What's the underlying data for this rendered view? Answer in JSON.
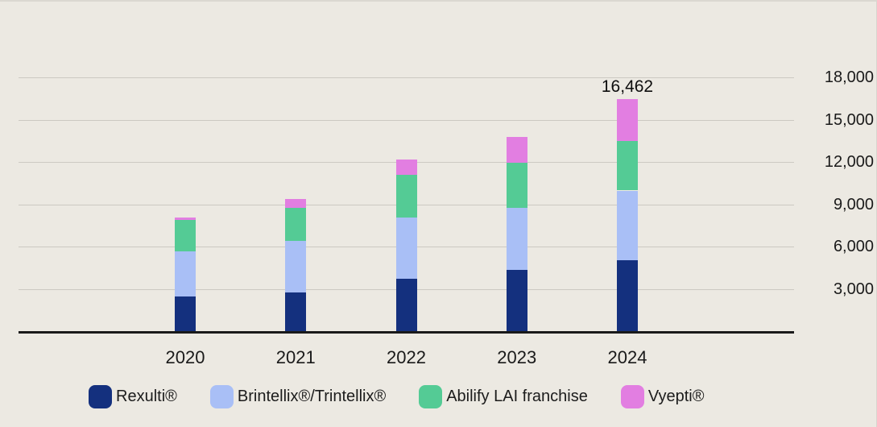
{
  "chart": {
    "background_color": "#ECE9E2",
    "gridline_color": "#CCC9C2",
    "axis_color": "#1A1A1A",
    "text_color": "#1A1A1A"
  },
  "chart_data": {
    "type": "bar",
    "stacked": true,
    "title": "",
    "xlabel": "",
    "ylabel": "",
    "grid": true,
    "legend_position": "bottom",
    "ylim": [
      0,
      18000
    ],
    "yticks": [
      3000,
      6000,
      9000,
      12000,
      15000,
      18000
    ],
    "ytick_labels": [
      "3,000",
      "6,000",
      "9,000",
      "12,000",
      "15,000",
      "18,000"
    ],
    "categories": [
      "2020",
      "2021",
      "2022",
      "2023",
      "2024"
    ],
    "series": [
      {
        "name": "Rexulti®",
        "color": "#14307E",
        "values": [
          2470,
          2760,
          3730,
          4350,
          5022
        ]
      },
      {
        "name": "Brintellix®/Trintellix®",
        "color": "#A9BFF6",
        "values": [
          3160,
          3660,
          4340,
          4420,
          4949
        ]
      },
      {
        "name": "Abilify LAI franchise",
        "color": "#54CB95",
        "values": [
          2260,
          2340,
          2990,
          3150,
          3522
        ]
      },
      {
        "name": "Vyepti®",
        "color": "#E27EE1",
        "values": [
          150,
          610,
          1100,
          1850,
          2969
        ]
      }
    ],
    "annotations": [
      {
        "category": "2024",
        "text": "16,462",
        "value": 16462
      }
    ]
  }
}
